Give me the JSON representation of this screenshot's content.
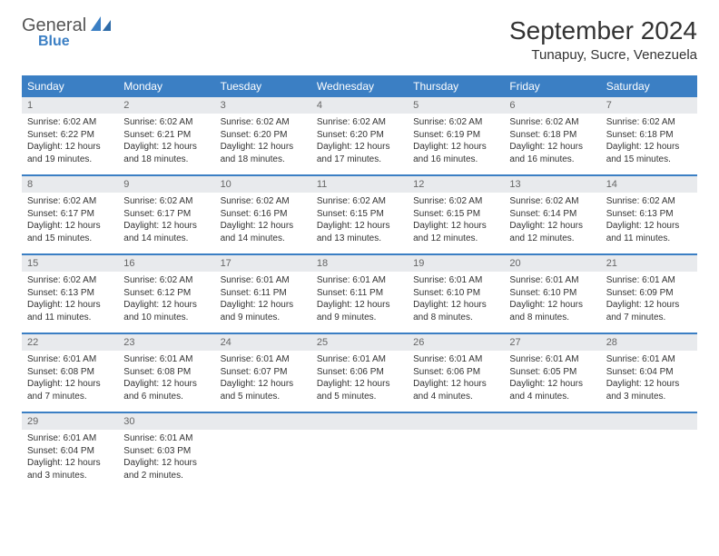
{
  "brand": {
    "word1": "General",
    "word2": "Blue"
  },
  "title": "September 2024",
  "location": "Tunapuy, Sucre, Venezuela",
  "colors": {
    "accent": "#3b7fc4",
    "header_bg": "#3b7fc4",
    "header_text": "#ffffff",
    "daynum_bg": "#e8eaed",
    "daynum_text": "#666666",
    "body_text": "#333333",
    "row_border": "#3b7fc4",
    "page_bg": "#ffffff"
  },
  "typography": {
    "title_fontsize": 28,
    "location_fontsize": 15,
    "dayhead_fontsize": 12,
    "daynum_fontsize": 11,
    "body_fontsize": 10
  },
  "day_names": [
    "Sunday",
    "Monday",
    "Tuesday",
    "Wednesday",
    "Thursday",
    "Friday",
    "Saturday"
  ],
  "weeks": [
    [
      {
        "n": "1",
        "sr": "Sunrise: 6:02 AM",
        "ss": "Sunset: 6:22 PM",
        "d1": "Daylight: 12 hours",
        "d2": "and 19 minutes."
      },
      {
        "n": "2",
        "sr": "Sunrise: 6:02 AM",
        "ss": "Sunset: 6:21 PM",
        "d1": "Daylight: 12 hours",
        "d2": "and 18 minutes."
      },
      {
        "n": "3",
        "sr": "Sunrise: 6:02 AM",
        "ss": "Sunset: 6:20 PM",
        "d1": "Daylight: 12 hours",
        "d2": "and 18 minutes."
      },
      {
        "n": "4",
        "sr": "Sunrise: 6:02 AM",
        "ss": "Sunset: 6:20 PM",
        "d1": "Daylight: 12 hours",
        "d2": "and 17 minutes."
      },
      {
        "n": "5",
        "sr": "Sunrise: 6:02 AM",
        "ss": "Sunset: 6:19 PM",
        "d1": "Daylight: 12 hours",
        "d2": "and 16 minutes."
      },
      {
        "n": "6",
        "sr": "Sunrise: 6:02 AM",
        "ss": "Sunset: 6:18 PM",
        "d1": "Daylight: 12 hours",
        "d2": "and 16 minutes."
      },
      {
        "n": "7",
        "sr": "Sunrise: 6:02 AM",
        "ss": "Sunset: 6:18 PM",
        "d1": "Daylight: 12 hours",
        "d2": "and 15 minutes."
      }
    ],
    [
      {
        "n": "8",
        "sr": "Sunrise: 6:02 AM",
        "ss": "Sunset: 6:17 PM",
        "d1": "Daylight: 12 hours",
        "d2": "and 15 minutes."
      },
      {
        "n": "9",
        "sr": "Sunrise: 6:02 AM",
        "ss": "Sunset: 6:17 PM",
        "d1": "Daylight: 12 hours",
        "d2": "and 14 minutes."
      },
      {
        "n": "10",
        "sr": "Sunrise: 6:02 AM",
        "ss": "Sunset: 6:16 PM",
        "d1": "Daylight: 12 hours",
        "d2": "and 14 minutes."
      },
      {
        "n": "11",
        "sr": "Sunrise: 6:02 AM",
        "ss": "Sunset: 6:15 PM",
        "d1": "Daylight: 12 hours",
        "d2": "and 13 minutes."
      },
      {
        "n": "12",
        "sr": "Sunrise: 6:02 AM",
        "ss": "Sunset: 6:15 PM",
        "d1": "Daylight: 12 hours",
        "d2": "and 12 minutes."
      },
      {
        "n": "13",
        "sr": "Sunrise: 6:02 AM",
        "ss": "Sunset: 6:14 PM",
        "d1": "Daylight: 12 hours",
        "d2": "and 12 minutes."
      },
      {
        "n": "14",
        "sr": "Sunrise: 6:02 AM",
        "ss": "Sunset: 6:13 PM",
        "d1": "Daylight: 12 hours",
        "d2": "and 11 minutes."
      }
    ],
    [
      {
        "n": "15",
        "sr": "Sunrise: 6:02 AM",
        "ss": "Sunset: 6:13 PM",
        "d1": "Daylight: 12 hours",
        "d2": "and 11 minutes."
      },
      {
        "n": "16",
        "sr": "Sunrise: 6:02 AM",
        "ss": "Sunset: 6:12 PM",
        "d1": "Daylight: 12 hours",
        "d2": "and 10 minutes."
      },
      {
        "n": "17",
        "sr": "Sunrise: 6:01 AM",
        "ss": "Sunset: 6:11 PM",
        "d1": "Daylight: 12 hours",
        "d2": "and 9 minutes."
      },
      {
        "n": "18",
        "sr": "Sunrise: 6:01 AM",
        "ss": "Sunset: 6:11 PM",
        "d1": "Daylight: 12 hours",
        "d2": "and 9 minutes."
      },
      {
        "n": "19",
        "sr": "Sunrise: 6:01 AM",
        "ss": "Sunset: 6:10 PM",
        "d1": "Daylight: 12 hours",
        "d2": "and 8 minutes."
      },
      {
        "n": "20",
        "sr": "Sunrise: 6:01 AM",
        "ss": "Sunset: 6:10 PM",
        "d1": "Daylight: 12 hours",
        "d2": "and 8 minutes."
      },
      {
        "n": "21",
        "sr": "Sunrise: 6:01 AM",
        "ss": "Sunset: 6:09 PM",
        "d1": "Daylight: 12 hours",
        "d2": "and 7 minutes."
      }
    ],
    [
      {
        "n": "22",
        "sr": "Sunrise: 6:01 AM",
        "ss": "Sunset: 6:08 PM",
        "d1": "Daylight: 12 hours",
        "d2": "and 7 minutes."
      },
      {
        "n": "23",
        "sr": "Sunrise: 6:01 AM",
        "ss": "Sunset: 6:08 PM",
        "d1": "Daylight: 12 hours",
        "d2": "and 6 minutes."
      },
      {
        "n": "24",
        "sr": "Sunrise: 6:01 AM",
        "ss": "Sunset: 6:07 PM",
        "d1": "Daylight: 12 hours",
        "d2": "and 5 minutes."
      },
      {
        "n": "25",
        "sr": "Sunrise: 6:01 AM",
        "ss": "Sunset: 6:06 PM",
        "d1": "Daylight: 12 hours",
        "d2": "and 5 minutes."
      },
      {
        "n": "26",
        "sr": "Sunrise: 6:01 AM",
        "ss": "Sunset: 6:06 PM",
        "d1": "Daylight: 12 hours",
        "d2": "and 4 minutes."
      },
      {
        "n": "27",
        "sr": "Sunrise: 6:01 AM",
        "ss": "Sunset: 6:05 PM",
        "d1": "Daylight: 12 hours",
        "d2": "and 4 minutes."
      },
      {
        "n": "28",
        "sr": "Sunrise: 6:01 AM",
        "ss": "Sunset: 6:04 PM",
        "d1": "Daylight: 12 hours",
        "d2": "and 3 minutes."
      }
    ],
    [
      {
        "n": "29",
        "sr": "Sunrise: 6:01 AM",
        "ss": "Sunset: 6:04 PM",
        "d1": "Daylight: 12 hours",
        "d2": "and 3 minutes."
      },
      {
        "n": "30",
        "sr": "Sunrise: 6:01 AM",
        "ss": "Sunset: 6:03 PM",
        "d1": "Daylight: 12 hours",
        "d2": "and 2 minutes."
      },
      {
        "n": "",
        "sr": "",
        "ss": "",
        "d1": "",
        "d2": ""
      },
      {
        "n": "",
        "sr": "",
        "ss": "",
        "d1": "",
        "d2": ""
      },
      {
        "n": "",
        "sr": "",
        "ss": "",
        "d1": "",
        "d2": ""
      },
      {
        "n": "",
        "sr": "",
        "ss": "",
        "d1": "",
        "d2": ""
      },
      {
        "n": "",
        "sr": "",
        "ss": "",
        "d1": "",
        "d2": ""
      }
    ]
  ]
}
